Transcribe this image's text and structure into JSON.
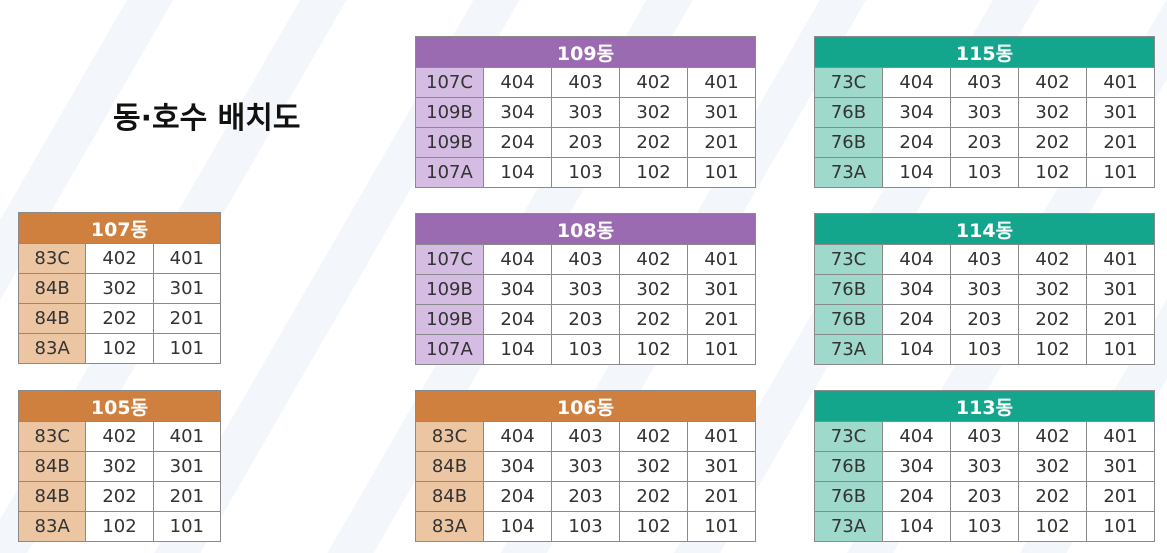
{
  "title": "동·호수 배치도",
  "buildings": {
    "b109": {
      "name": "109동",
      "rows": [
        {
          "type": "107C",
          "units": [
            "404",
            "403",
            "402",
            "401"
          ]
        },
        {
          "type": "109B",
          "units": [
            "304",
            "303",
            "302",
            "301"
          ]
        },
        {
          "type": "109B",
          "units": [
            "204",
            "203",
            "202",
            "201"
          ]
        },
        {
          "type": "107A",
          "units": [
            "104",
            "103",
            "102",
            "101"
          ]
        }
      ]
    },
    "b108": {
      "name": "108동",
      "rows": [
        {
          "type": "107C",
          "units": [
            "404",
            "403",
            "402",
            "401"
          ]
        },
        {
          "type": "109B",
          "units": [
            "304",
            "303",
            "302",
            "301"
          ]
        },
        {
          "type": "109B",
          "units": [
            "204",
            "203",
            "202",
            "201"
          ]
        },
        {
          "type": "107A",
          "units": [
            "104",
            "103",
            "102",
            "101"
          ]
        }
      ]
    },
    "b106": {
      "name": "106동",
      "rows": [
        {
          "type": "83C",
          "units": [
            "404",
            "403",
            "402",
            "401"
          ]
        },
        {
          "type": "84B",
          "units": [
            "304",
            "303",
            "302",
            "301"
          ]
        },
        {
          "type": "84B",
          "units": [
            "204",
            "203",
            "202",
            "201"
          ]
        },
        {
          "type": "83A",
          "units": [
            "104",
            "103",
            "102",
            "101"
          ]
        }
      ]
    },
    "b115": {
      "name": "115동",
      "rows": [
        {
          "type": "73C",
          "units": [
            "404",
            "403",
            "402",
            "401"
          ]
        },
        {
          "type": "76B",
          "units": [
            "304",
            "303",
            "302",
            "301"
          ]
        },
        {
          "type": "76B",
          "units": [
            "204",
            "203",
            "202",
            "201"
          ]
        },
        {
          "type": "73A",
          "units": [
            "104",
            "103",
            "102",
            "101"
          ]
        }
      ]
    },
    "b114": {
      "name": "114동",
      "rows": [
        {
          "type": "73C",
          "units": [
            "404",
            "403",
            "402",
            "401"
          ]
        },
        {
          "type": "76B",
          "units": [
            "304",
            "303",
            "302",
            "301"
          ]
        },
        {
          "type": "76B",
          "units": [
            "204",
            "203",
            "202",
            "201"
          ]
        },
        {
          "type": "73A",
          "units": [
            "104",
            "103",
            "102",
            "101"
          ]
        }
      ]
    },
    "b113": {
      "name": "113동",
      "rows": [
        {
          "type": "73C",
          "units": [
            "404",
            "403",
            "402",
            "401"
          ]
        },
        {
          "type": "76B",
          "units": [
            "304",
            "303",
            "302",
            "301"
          ]
        },
        {
          "type": "76B",
          "units": [
            "204",
            "203",
            "202",
            "201"
          ]
        },
        {
          "type": "73A",
          "units": [
            "104",
            "103",
            "102",
            "101"
          ]
        }
      ]
    },
    "b107": {
      "name": "107동",
      "rows": [
        {
          "type": "83C",
          "units": [
            "402",
            "401"
          ]
        },
        {
          "type": "84B",
          "units": [
            "302",
            "301"
          ]
        },
        {
          "type": "84B",
          "units": [
            "202",
            "201"
          ]
        },
        {
          "type": "83A",
          "units": [
            "102",
            "101"
          ]
        }
      ]
    },
    "b105": {
      "name": "105동",
      "rows": [
        {
          "type": "83C",
          "units": [
            "402",
            "401"
          ]
        },
        {
          "type": "84B",
          "units": [
            "302",
            "301"
          ]
        },
        {
          "type": "84B",
          "units": [
            "202",
            "201"
          ]
        },
        {
          "type": "83A",
          "units": [
            "102",
            "101"
          ]
        }
      ]
    }
  },
  "colors": {
    "purple_header": "#9b6bb2",
    "purple_type": "#d5bce3",
    "orange_header": "#cf7f3e",
    "orange_type": "#ecc6a2",
    "teal_header": "#14a68d",
    "teal_type": "#9fd9cc"
  }
}
